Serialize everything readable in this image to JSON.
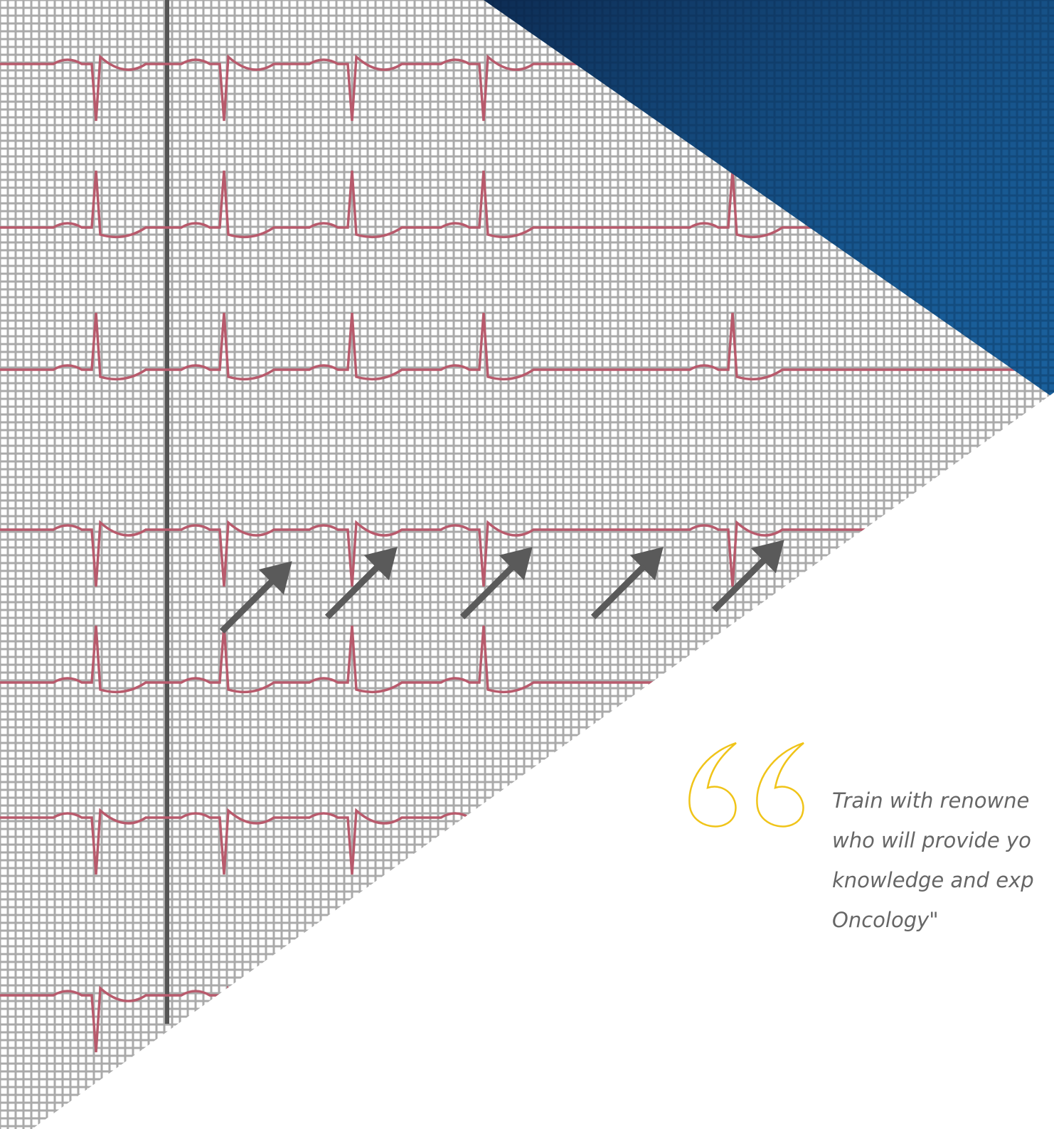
{
  "quote": {
    "lines": [
      "Train with renowne",
      "who will provide yo",
      "knowledge and exp",
      "Oncology\""
    ]
  }
}
